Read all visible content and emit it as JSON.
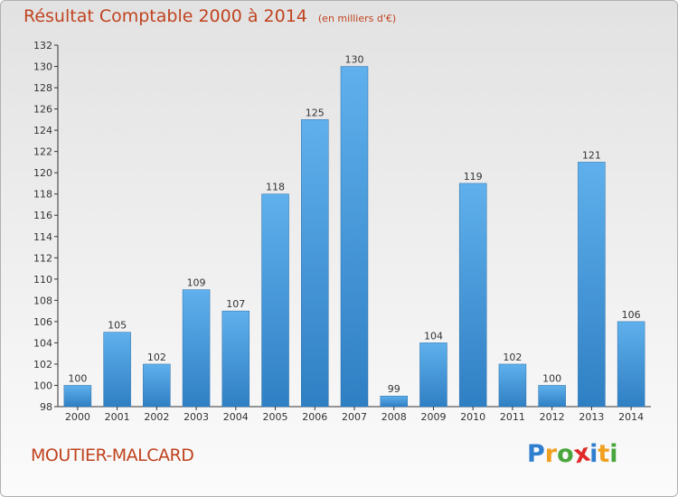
{
  "header": {
    "title": "Résultat Comptable 2000 à 2014",
    "subtitle": "(en milliers d'€)"
  },
  "footer": {
    "town": "MOUTIER-MALCARD",
    "logo_text": "Proxiti",
    "logo_letters": [
      "P",
      "r",
      "o",
      "x",
      "i",
      "t",
      "i"
    ],
    "logo_colors": [
      "#2f7fd0",
      "#f0a020",
      "#4aa63c",
      "#e02a2a",
      "#2f7fd0",
      "#f0a020",
      "#4aa63c"
    ]
  },
  "colors": {
    "bar_top": "#5fb0ec",
    "bar_bottom": "#2f7fc4",
    "text": "#c0431f",
    "axis": "#333333"
  },
  "chart_data": {
    "type": "bar",
    "title": "Résultat Comptable 2000 à 2014",
    "subtitle": "(en milliers d'€)",
    "categories": [
      "2000",
      "2001",
      "2002",
      "2003",
      "2004",
      "2005",
      "2006",
      "2007",
      "2008",
      "2009",
      "2010",
      "2011",
      "2012",
      "2013",
      "2014"
    ],
    "values": [
      100,
      105,
      102,
      109,
      107,
      118,
      125,
      130,
      99,
      104,
      119,
      102,
      100,
      121,
      106
    ],
    "ylim": [
      98,
      132
    ],
    "yticks": [
      98,
      100,
      102,
      104,
      106,
      108,
      110,
      112,
      114,
      116,
      118,
      120,
      122,
      124,
      126,
      128,
      130,
      132
    ],
    "xlabel": "",
    "ylabel": "",
    "grid": false,
    "legend": "none"
  }
}
